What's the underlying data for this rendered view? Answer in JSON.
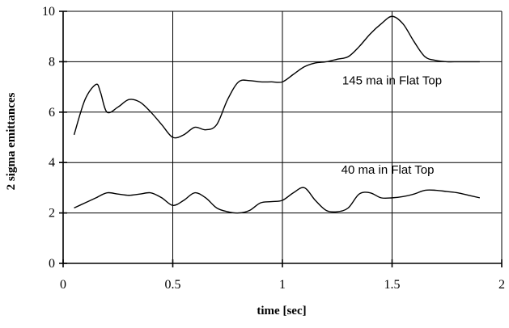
{
  "chart_data": {
    "type": "line",
    "title": "",
    "xlabel": "time [sec]",
    "ylabel": "2 sigma emittances",
    "xlim": [
      0,
      2
    ],
    "ylim": [
      0,
      10
    ],
    "x_ticks": [
      "0",
      "0.5",
      "1",
      "1.5",
      "2"
    ],
    "y_ticks": [
      "0",
      "2",
      "4",
      "6",
      "8",
      "10"
    ],
    "grid": true,
    "legend": "none",
    "series": [
      {
        "name": "145 ma in Flat Top",
        "x": [
          0.05,
          0.1,
          0.15,
          0.17,
          0.2,
          0.25,
          0.3,
          0.35,
          0.4,
          0.45,
          0.5,
          0.55,
          0.6,
          0.65,
          0.7,
          0.75,
          0.8,
          0.85,
          0.9,
          0.95,
          1.0,
          1.05,
          1.1,
          1.15,
          1.2,
          1.25,
          1.3,
          1.35,
          1.4,
          1.45,
          1.5,
          1.55,
          1.6,
          1.65,
          1.7,
          1.75,
          1.8,
          1.85,
          1.9
        ],
        "y": [
          5.1,
          6.5,
          7.1,
          6.8,
          6.0,
          6.2,
          6.5,
          6.4,
          6.0,
          5.5,
          5.0,
          5.1,
          5.4,
          5.3,
          5.5,
          6.5,
          7.2,
          7.25,
          7.2,
          7.2,
          7.2,
          7.5,
          7.8,
          7.95,
          8.0,
          8.1,
          8.2,
          8.6,
          9.1,
          9.5,
          9.8,
          9.5,
          8.8,
          8.2,
          8.05,
          8.0,
          8.0,
          8.0,
          8.0
        ]
      },
      {
        "name": "40 ma in Flat Top",
        "x": [
          0.05,
          0.1,
          0.15,
          0.2,
          0.25,
          0.3,
          0.35,
          0.4,
          0.45,
          0.5,
          0.55,
          0.6,
          0.65,
          0.7,
          0.75,
          0.8,
          0.85,
          0.9,
          0.95,
          1.0,
          1.05,
          1.1,
          1.15,
          1.2,
          1.25,
          1.3,
          1.35,
          1.4,
          1.45,
          1.5,
          1.55,
          1.6,
          1.65,
          1.7,
          1.75,
          1.8,
          1.85,
          1.9
        ],
        "y": [
          2.2,
          2.4,
          2.6,
          2.8,
          2.75,
          2.7,
          2.75,
          2.8,
          2.6,
          2.3,
          2.5,
          2.8,
          2.6,
          2.2,
          2.05,
          2.0,
          2.1,
          2.4,
          2.45,
          2.5,
          2.8,
          3.0,
          2.5,
          2.1,
          2.05,
          2.2,
          2.75,
          2.8,
          2.6,
          2.6,
          2.65,
          2.75,
          2.9,
          2.9,
          2.85,
          2.8,
          2.7,
          2.6
        ]
      }
    ],
    "annotations": [
      {
        "text": "145 ma in Flat Top",
        "x": 1.5,
        "y": 7.1,
        "series": 0
      },
      {
        "text": "40 ma in Flat Top",
        "x": 1.48,
        "y": 3.55,
        "series": 1
      }
    ]
  }
}
